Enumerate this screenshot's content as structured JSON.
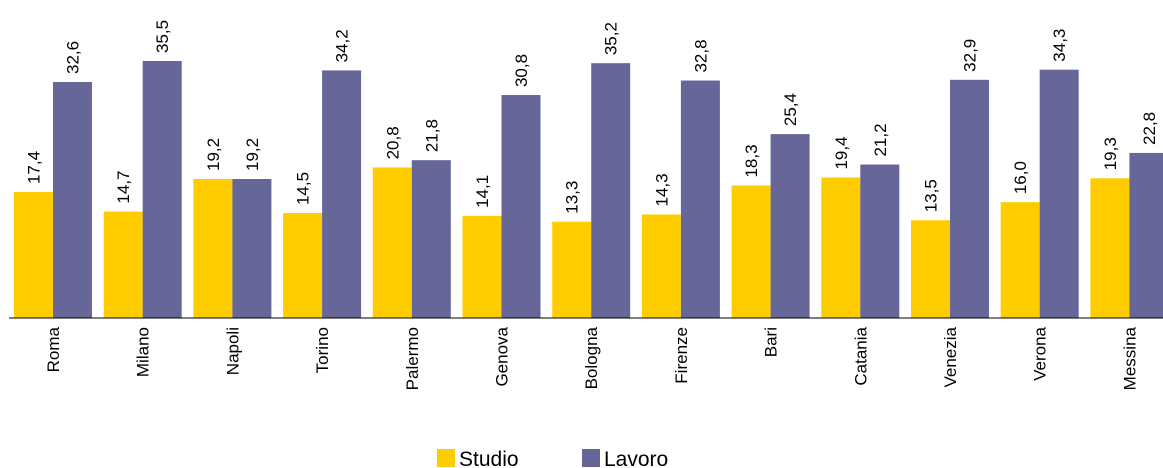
{
  "chart_data": {
    "type": "bar",
    "title": "",
    "xlabel": "",
    "ylabel": "",
    "categories": [
      "Roma",
      "Milano",
      "Napoli",
      "Torino",
      "Palermo",
      "Genova",
      "Bologna",
      "Firenze",
      "Bari",
      "Catania",
      "Venezia",
      "Verona",
      "Messina"
    ],
    "series": [
      {
        "name": "Studio",
        "color": "#FFCC00",
        "values": [
          17.4,
          14.7,
          19.2,
          14.5,
          20.8,
          14.1,
          13.3,
          14.3,
          18.3,
          19.4,
          13.5,
          16.0,
          19.3
        ],
        "labels": [
          "17,4",
          "14,7",
          "19,2",
          "14,5",
          "20,8",
          "14,1",
          "13,3",
          "14,3",
          "18,3",
          "19,4",
          "13,5",
          "16,0",
          "19,3"
        ]
      },
      {
        "name": "Lavoro",
        "color": "#666699",
        "values": [
          32.6,
          35.5,
          19.2,
          34.2,
          21.8,
          30.8,
          35.2,
          32.8,
          25.4,
          21.2,
          32.9,
          34.3,
          22.8
        ],
        "labels": [
          "32,6",
          "35,5",
          "19,2",
          "34,2",
          "21,8",
          "30,8",
          "35,2",
          "32,8",
          "25,4",
          "21,2",
          "32,9",
          "34,3",
          "22,8"
        ]
      }
    ],
    "ylim": [
      0,
      35.5
    ],
    "grid": false,
    "legend_position": "bottom"
  }
}
